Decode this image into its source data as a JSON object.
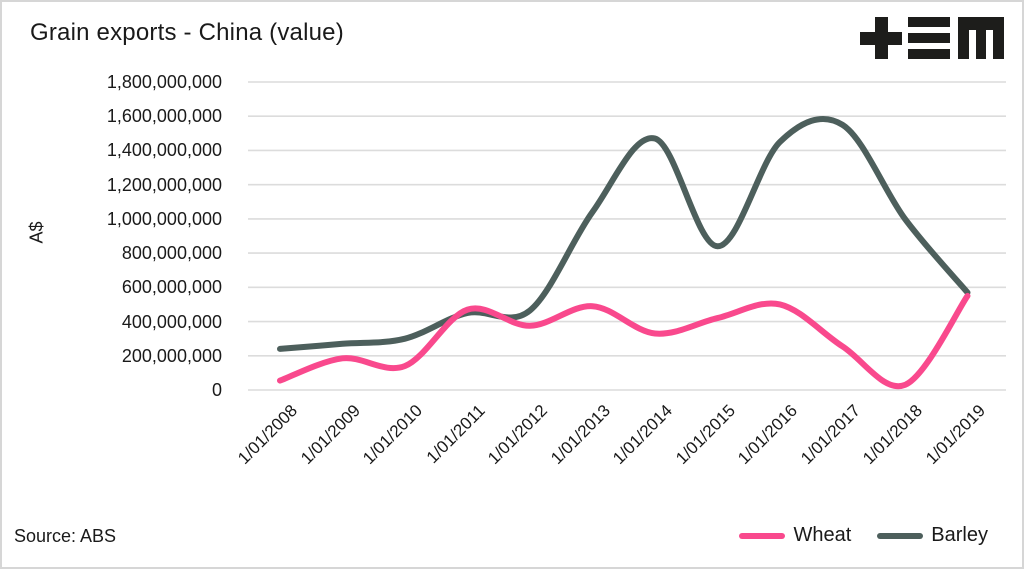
{
  "colors": {
    "text": "#1a1a1a",
    "grid": "#dcdcdc",
    "background": "#ffffff",
    "logo": "#1d1d1b",
    "border": "#d6d6d6"
  },
  "logo": {
    "icon": "plus-triplebar-m-logo"
  },
  "chart_data": {
    "type": "line",
    "title": "Grain exports - China (value)",
    "ylabel": "A$",
    "xlabel": "",
    "source": "Source: ABS",
    "ylim": [
      0,
      1800000000
    ],
    "ytick_step": 200000000,
    "ytick_labels": [
      "0",
      "200,000,000",
      "400,000,000",
      "600,000,000",
      "800,000,000",
      "1,000,000,000",
      "1,200,000,000",
      "1,400,000,000",
      "1,600,000,000",
      "1,800,000,000"
    ],
    "categories": [
      "1/01/2008",
      "1/01/2009",
      "1/01/2010",
      "1/01/2011",
      "1/01/2012",
      "1/01/2013",
      "1/01/2014",
      "1/01/2015",
      "1/01/2016",
      "1/01/2017",
      "1/01/2018",
      "1/01/2019"
    ],
    "series": [
      {
        "name": "Wheat",
        "color": "#f9498d",
        "values": [
          55000000,
          185000000,
          140000000,
          470000000,
          375000000,
          490000000,
          330000000,
          420000000,
          500000000,
          255000000,
          30000000,
          550000000
        ]
      },
      {
        "name": "Barley",
        "color": "#4d5f5c",
        "values": [
          240000000,
          270000000,
          300000000,
          450000000,
          465000000,
          1040000000,
          1470000000,
          840000000,
          1450000000,
          1550000000,
          1000000000,
          570000000
        ]
      }
    ],
    "grid": "horizontal-only",
    "legend_position": "bottom-right"
  }
}
